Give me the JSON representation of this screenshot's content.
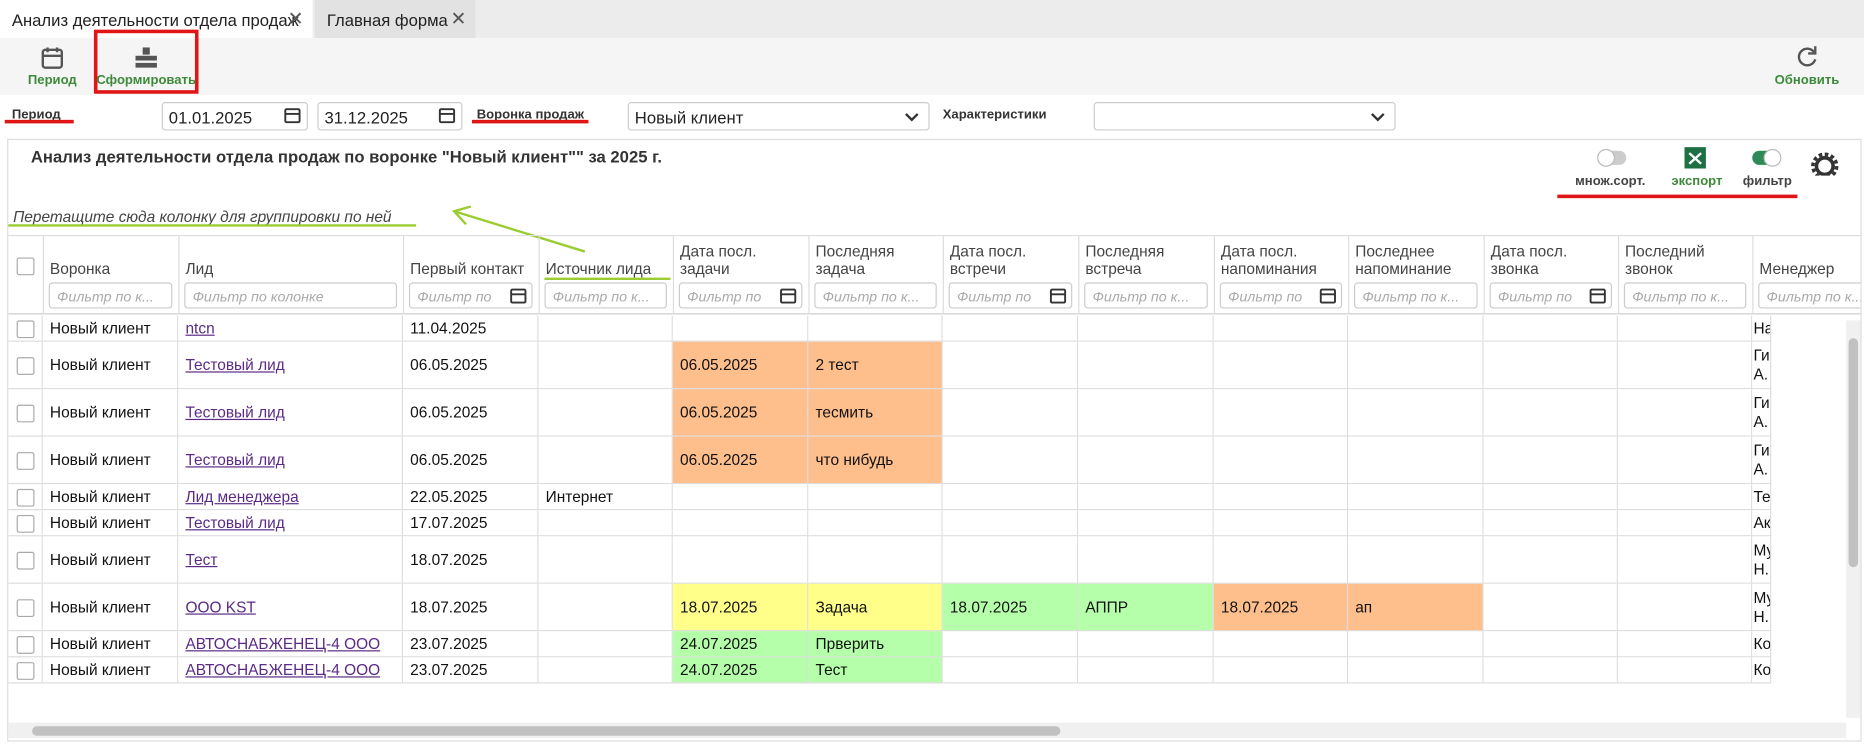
{
  "tabs": [
    "Анализ деятельности отдела продаж",
    "Главная форма"
  ],
  "toolbar": {
    "period": "Период",
    "generate": "Сформировать",
    "refresh": "Обновить"
  },
  "filters": {
    "period_label": "Период",
    "date_from": "01.01.2025",
    "date_to": "31.12.2025",
    "funnel_label": "Воронка продаж",
    "funnel_value": "Новый клиент",
    "characteristics_label": "Характеристики"
  },
  "report": {
    "title": "Анализ деятельности отдела продаж по воронке \"Новый клиент\"\" за 2025 г.",
    "toggles": [
      "множ.сорт.",
      "экспорт",
      "фильтр"
    ],
    "group_hint": "Перетащите сюда колонку для группировки по ней"
  },
  "table": {
    "columns": [
      {
        "title": "Воронка",
        "filter": "Фильтр по к..."
      },
      {
        "title": "Лид",
        "filter": "Фильтр по колонке"
      },
      {
        "title": "Первый контакт",
        "filter": "Фильтр по"
      },
      {
        "title": "Источник лида",
        "filter": "Фильтр по к..."
      },
      {
        "title": "Дата посл. задачи",
        "filter": "Фильтр по"
      },
      {
        "title": "Последняя задача",
        "filter": "Фильтр по к..."
      },
      {
        "title": "Дата посл. встречи",
        "filter": "Фильтр по"
      },
      {
        "title": "Последняя встреча",
        "filter": "Фильтр по к..."
      },
      {
        "title": "Дата посл. напоминания",
        "filter": "Фильтр по"
      },
      {
        "title": "Последнее напоминание",
        "filter": "Фильтр по к..."
      },
      {
        "title": "Дата посл. звонка",
        "filter": "Фильтр по"
      },
      {
        "title": "Последний звонок",
        "filter": "Фильтр по к..."
      },
      {
        "title": "Менеджер",
        "filter": "Фильтр по к..."
      }
    ],
    "rows": [
      {
        "cells": [
          "Новый клиент",
          "ntcn",
          "11.04.2025",
          null,
          null,
          null,
          null,
          null,
          null,
          null,
          null,
          null,
          "На"
        ],
        "fills": [
          null,
          null,
          null,
          null,
          null,
          null,
          null,
          null,
          null,
          null,
          null,
          null,
          null
        ]
      },
      {
        "cells": [
          "Новый клиент",
          "Тестовый лид",
          "06.05.2025",
          null,
          "06.05.2025",
          "2 тест",
          null,
          null,
          null,
          null,
          null,
          null,
          "Ги А."
        ],
        "fills": [
          null,
          null,
          null,
          null,
          "#ffbf8c",
          "#ffbf8c",
          null,
          null,
          null,
          null,
          null,
          null,
          null
        ]
      },
      {
        "cells": [
          "Новый клиент",
          "Тестовый лид",
          "06.05.2025",
          null,
          "06.05.2025",
          "тесмить",
          null,
          null,
          null,
          null,
          null,
          null,
          "Ги А."
        ],
        "fills": [
          null,
          null,
          null,
          null,
          "#ffbf8c",
          "#ffbf8c",
          null,
          null,
          null,
          null,
          null,
          null,
          null
        ]
      },
      {
        "cells": [
          "Новый клиент",
          "Тестовый лид",
          "06.05.2025",
          null,
          "06.05.2025",
          "что нибудь",
          null,
          null,
          null,
          null,
          null,
          null,
          "Ги А."
        ],
        "fills": [
          null,
          null,
          null,
          null,
          "#ffbf8c",
          "#ffbf8c",
          null,
          null,
          null,
          null,
          null,
          null,
          null
        ]
      },
      {
        "cells": [
          "Новый клиент",
          "Лид менеджера",
          "22.05.2025",
          "Интернет",
          null,
          null,
          null,
          null,
          null,
          null,
          null,
          null,
          "Те"
        ],
        "fills": [
          null,
          null,
          null,
          null,
          null,
          null,
          null,
          null,
          null,
          null,
          null,
          null,
          null
        ]
      },
      {
        "cells": [
          "Новый клиент",
          "Тестовый лид",
          "17.07.2025",
          null,
          null,
          null,
          null,
          null,
          null,
          null,
          null,
          null,
          "Ак"
        ],
        "fills": [
          null,
          null,
          null,
          null,
          null,
          null,
          null,
          null,
          null,
          null,
          null,
          null,
          null
        ]
      },
      {
        "cells": [
          "Новый клиент",
          "Тест",
          "18.07.2025",
          null,
          null,
          null,
          null,
          null,
          null,
          null,
          null,
          null,
          "Му Н."
        ],
        "fills": [
          null,
          null,
          null,
          null,
          null,
          null,
          null,
          null,
          null,
          null,
          null,
          null,
          null
        ]
      },
      {
        "cells": [
          "Новый клиент",
          "ООО KST",
          "18.07.2025",
          null,
          "18.07.2025",
          "Задача",
          "18.07.2025",
          "АППР",
          "18.07.2025",
          "ап",
          null,
          null,
          "Му Н."
        ],
        "fills": [
          null,
          null,
          null,
          null,
          "#ffff8a",
          "#ffff8a",
          "#b5ffaa",
          "#b5ffaa",
          "#ffbf8c",
          "#ffbf8c",
          null,
          null,
          null
        ]
      },
      {
        "cells": [
          "Новый клиент",
          "АВТОСНАБЖЕНЕЦ-4 ООО",
          "23.07.2025",
          null,
          "24.07.2025",
          "Прверить",
          null,
          null,
          null,
          null,
          null,
          null,
          "Ко"
        ],
        "fills": [
          null,
          null,
          null,
          null,
          "#b5ffaa",
          "#b5ffaa",
          null,
          null,
          null,
          null,
          null,
          null,
          null
        ]
      },
      {
        "cells": [
          "Новый клиент",
          "АВТОСНАБЖЕНЕЦ-4 ООО",
          "23.07.2025",
          null,
          "24.07.2025",
          "Тест",
          null,
          null,
          null,
          null,
          null,
          null,
          "Ко"
        ],
        "fills": [
          null,
          null,
          null,
          null,
          "#b5ffaa",
          "#b5ffaa",
          null,
          null,
          null,
          null,
          null,
          null,
          null
        ]
      }
    ]
  }
}
